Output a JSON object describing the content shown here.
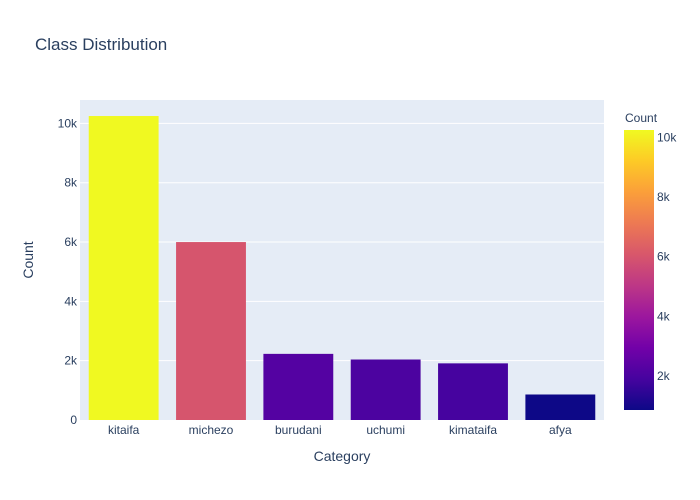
{
  "chart_data": {
    "type": "bar",
    "title": "Class Distribution",
    "xlabel": "Category",
    "ylabel": "Count",
    "categories": [
      "kitaifa",
      "michezo",
      "burudani",
      "uchumi",
      "kimataifa",
      "afya"
    ],
    "values": [
      10250,
      6000,
      2230,
      2040,
      1910,
      860
    ],
    "ylim": [
      0,
      10790
    ],
    "yticks": [
      0,
      2000,
      4000,
      6000,
      8000,
      10000
    ],
    "ytick_labels": [
      "0",
      "2k",
      "4k",
      "6k",
      "8k",
      "10k"
    ],
    "grid": true,
    "colorbar": {
      "title": "Count",
      "cmin": 860,
      "cmax": 10250,
      "ticks": [
        2000,
        4000,
        6000,
        8000,
        10000
      ],
      "tick_labels": [
        "2k",
        "4k",
        "6k",
        "8k",
        "10k"
      ],
      "colorscale": [
        "#0d0887",
        "#46039f",
        "#7201a8",
        "#9c179e",
        "#bd3786",
        "#d8576b",
        "#ed7953",
        "#fb9f3a",
        "#fdca26",
        "#f0f921"
      ]
    },
    "colors": {
      "plot_bg": "#e5ecf6",
      "grid": "#ffffff",
      "text": "#2a3f5f"
    }
  }
}
